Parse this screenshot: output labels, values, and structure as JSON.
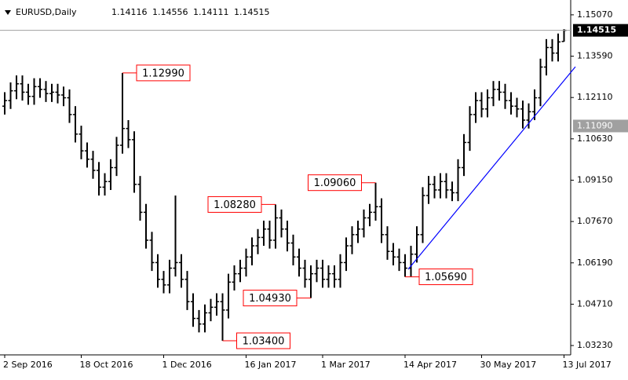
{
  "chart_data": {
    "type": "ohlc",
    "symbol": "EURUSD,Daily",
    "quote": [
      "1.14116",
      "1.14556",
      "1.14111",
      "1.14515"
    ],
    "color": "#000000",
    "ylim": [
      1.02895,
      1.15601
    ],
    "yticks": [
      {
        "value": 1.1507,
        "label": "1.15070"
      },
      {
        "value": 1.1359,
        "label": "1.13590"
      },
      {
        "value": 1.1211,
        "label": "1.12110"
      },
      {
        "value": 1.1063,
        "label": "1.10630"
      },
      {
        "value": 1.0915,
        "label": "1.09150"
      },
      {
        "value": 1.0767,
        "label": "1.07670"
      },
      {
        "value": 1.0619,
        "label": "1.06190"
      },
      {
        "value": 1.0471,
        "label": "1.04710"
      },
      {
        "value": 1.0323,
        "label": "1.03230"
      }
    ],
    "price_line": {
      "value": 1.14515,
      "label": "1.14515"
    },
    "marker": {
      "value": 1.1109,
      "label": "1.11090"
    },
    "annotations": [
      {
        "value": 1.1299,
        "label": "1.12990"
      },
      {
        "value": 1.0828,
        "label": "1.08280"
      },
      {
        "value": 1.0906,
        "label": "1.09060"
      },
      {
        "value": 1.0569,
        "label": "1.05690"
      },
      {
        "value": 1.0493,
        "label": "1.04930"
      },
      {
        "value": 1.034,
        "label": "1.03400"
      }
    ],
    "categories": [
      "2 Sep 2016",
      null,
      null,
      null,
      null,
      null,
      null,
      null,
      null,
      null,
      null,
      null,
      null,
      "18 Oct 2016",
      null,
      null,
      null,
      null,
      null,
      null,
      null,
      null,
      null,
      null,
      null,
      null,
      null,
      "1 Dec 2016",
      null,
      null,
      null,
      null,
      null,
      null,
      null,
      null,
      null,
      null,
      null,
      null,
      null,
      "16 Jan 2017",
      null,
      null,
      null,
      null,
      null,
      null,
      null,
      null,
      null,
      null,
      null,
      null,
      "1 Mar 2017",
      null,
      null,
      null,
      null,
      null,
      null,
      null,
      null,
      null,
      null,
      null,
      null,
      null,
      "14 Apr 2017",
      null,
      null,
      null,
      null,
      null,
      null,
      null,
      null,
      null,
      null,
      null,
      null,
      "30 May 2017",
      null,
      null,
      null,
      null,
      null,
      null,
      null,
      null,
      null,
      null,
      null,
      null,
      null,
      "13 Jul 2017"
    ],
    "ohlc": [
      [
        1.118,
        1.123,
        1.115,
        1.12
      ],
      [
        1.12,
        1.1265,
        1.117,
        1.1235
      ],
      [
        1.1235,
        1.129,
        1.1205,
        1.126
      ],
      [
        1.126,
        1.129,
        1.12,
        1.123
      ],
      [
        1.123,
        1.126,
        1.1185,
        1.1215
      ],
      [
        1.1215,
        1.128,
        1.1185,
        1.125
      ],
      [
        1.125,
        1.128,
        1.121,
        1.124
      ],
      [
        1.124,
        1.127,
        1.1195,
        1.1225
      ],
      [
        1.1225,
        1.126,
        1.1195,
        1.123
      ],
      [
        1.123,
        1.126,
        1.119,
        1.122
      ],
      [
        1.122,
        1.125,
        1.118,
        1.121
      ],
      [
        1.121,
        1.124,
        1.112,
        1.115
      ],
      [
        1.115,
        1.118,
        1.105,
        1.108
      ],
      [
        1.108,
        1.111,
        1.099,
        1.102
      ],
      [
        1.102,
        1.105,
        1.096,
        1.099
      ],
      [
        1.099,
        1.102,
        1.092,
        1.095
      ],
      [
        1.095,
        1.098,
        1.086,
        1.089
      ],
      [
        1.089,
        1.094,
        1.086,
        1.091
      ],
      [
        1.091,
        1.099,
        1.088,
        1.096
      ],
      [
        1.096,
        1.107,
        1.093,
        1.104
      ],
      [
        1.104,
        1.1299,
        1.101,
        1.11
      ],
      [
        1.11,
        1.113,
        1.103,
        1.106
      ],
      [
        1.106,
        1.109,
        1.087,
        1.09
      ],
      [
        1.09,
        1.093,
        1.077,
        1.08
      ],
      [
        1.08,
        1.083,
        1.067,
        1.07
      ],
      [
        1.07,
        1.073,
        1.059,
        1.062
      ],
      [
        1.062,
        1.065,
        1.053,
        1.056
      ],
      [
        1.056,
        1.059,
        1.051,
        1.054
      ],
      [
        1.054,
        1.063,
        1.051,
        1.06
      ],
      [
        1.06,
        1.086,
        1.057,
        1.062
      ],
      [
        1.062,
        1.065,
        1.053,
        1.056
      ],
      [
        1.056,
        1.059,
        1.045,
        1.048
      ],
      [
        1.048,
        1.051,
        1.039,
        1.042
      ],
      [
        1.042,
        1.045,
        1.037,
        1.04
      ],
      [
        1.04,
        1.047,
        1.037,
        1.044
      ],
      [
        1.044,
        1.049,
        1.041,
        1.046
      ],
      [
        1.046,
        1.051,
        1.043,
        1.048
      ],
      [
        1.048,
        1.051,
        1.034,
        1.045
      ],
      [
        1.045,
        1.058,
        1.042,
        1.055
      ],
      [
        1.055,
        1.061,
        1.052,
        1.058
      ],
      [
        1.058,
        1.063,
        1.055,
        1.06
      ],
      [
        1.06,
        1.067,
        1.057,
        1.064
      ],
      [
        1.064,
        1.071,
        1.061,
        1.068
      ],
      [
        1.068,
        1.074,
        1.065,
        1.071
      ],
      [
        1.071,
        1.077,
        1.068,
        1.074
      ],
      [
        1.074,
        1.077,
        1.067,
        1.07
      ],
      [
        1.07,
        1.0828,
        1.067,
        1.078
      ],
      [
        1.078,
        1.081,
        1.071,
        1.074
      ],
      [
        1.074,
        1.077,
        1.066,
        1.069
      ],
      [
        1.069,
        1.072,
        1.061,
        1.064
      ],
      [
        1.064,
        1.067,
        1.057,
        1.06
      ],
      [
        1.06,
        1.063,
        1.053,
        1.056
      ],
      [
        1.056,
        1.061,
        1.0493,
        1.058
      ],
      [
        1.058,
        1.063,
        1.055,
        1.06
      ],
      [
        1.06,
        1.063,
        1.053,
        1.056
      ],
      [
        1.056,
        1.061,
        1.053,
        1.058
      ],
      [
        1.058,
        1.061,
        1.053,
        1.056
      ],
      [
        1.056,
        1.065,
        1.053,
        1.062
      ],
      [
        1.062,
        1.071,
        1.059,
        1.068
      ],
      [
        1.068,
        1.075,
        1.065,
        1.072
      ],
      [
        1.072,
        1.077,
        1.069,
        1.074
      ],
      [
        1.074,
        1.081,
        1.071,
        1.078
      ],
      [
        1.078,
        1.083,
        1.075,
        1.08
      ],
      [
        1.08,
        1.0906,
        1.077,
        1.082
      ],
      [
        1.082,
        1.085,
        1.069,
        1.072
      ],
      [
        1.072,
        1.075,
        1.063,
        1.066
      ],
      [
        1.066,
        1.069,
        1.061,
        1.064
      ],
      [
        1.064,
        1.067,
        1.059,
        1.062
      ],
      [
        1.062,
        1.065,
        1.0569,
        1.06
      ],
      [
        1.06,
        1.068,
        1.057,
        1.065
      ],
      [
        1.065,
        1.075,
        1.062,
        1.072
      ],
      [
        1.072,
        1.089,
        1.069,
        1.086
      ],
      [
        1.086,
        1.093,
        1.083,
        1.09
      ],
      [
        1.09,
        1.093,
        1.085,
        1.088
      ],
      [
        1.088,
        1.094,
        1.085,
        1.091
      ],
      [
        1.091,
        1.094,
        1.085,
        1.088
      ],
      [
        1.088,
        1.091,
        1.084,
        1.087
      ],
      [
        1.087,
        1.099,
        1.084,
        1.096
      ],
      [
        1.096,
        1.108,
        1.093,
        1.105
      ],
      [
        1.105,
        1.118,
        1.102,
        1.115
      ],
      [
        1.115,
        1.123,
        1.112,
        1.12
      ],
      [
        1.12,
        1.123,
        1.114,
        1.117
      ],
      [
        1.117,
        1.124,
        1.114,
        1.121
      ],
      [
        1.121,
        1.127,
        1.118,
        1.124
      ],
      [
        1.124,
        1.127,
        1.12,
        1.123
      ],
      [
        1.123,
        1.126,
        1.117,
        1.12
      ],
      [
        1.12,
        1.123,
        1.115,
        1.118
      ],
      [
        1.118,
        1.121,
        1.114,
        1.117
      ],
      [
        1.117,
        1.12,
        1.11,
        1.113
      ],
      [
        1.113,
        1.119,
        1.11,
        1.116
      ],
      [
        1.116,
        1.124,
        1.113,
        1.121
      ],
      [
        1.121,
        1.135,
        1.118,
        1.132
      ],
      [
        1.132,
        1.142,
        1.129,
        1.139
      ],
      [
        1.139,
        1.142,
        1.134,
        1.137
      ],
      [
        1.137,
        1.144,
        1.134,
        1.141
      ],
      [
        1.14116,
        1.14556,
        1.14111,
        1.14515
      ]
    ]
  }
}
